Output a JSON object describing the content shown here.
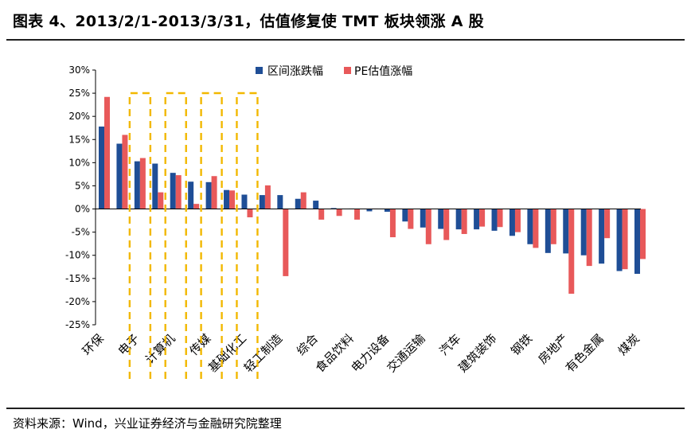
{
  "title": "图表 4、2013/2/1-2013/3/31，估值修复使 TMT 板块领涨 A 股",
  "source": "资料来源：Wind，兴业证券经济与金融研究院整理",
  "colors": {
    "series1": "#1f4e96",
    "series2": "#e8595a",
    "highlight": "#f2b800",
    "axis": "#000000"
  },
  "chart_data": {
    "type": "bar",
    "title": "",
    "xlabel": "",
    "ylabel": "",
    "ylim": [
      -25,
      30
    ],
    "yticks": [
      30,
      25,
      20,
      15,
      10,
      5,
      0,
      -5,
      -10,
      -15,
      -20,
      -25
    ],
    "ytick_labels": [
      "30%",
      "25%",
      "20%",
      "15%",
      "10%",
      "5%",
      "0%",
      "-5%",
      "-10%",
      "-15%",
      "-20%",
      "-25%"
    ],
    "legend_position": "top-center",
    "categories": [
      "环保",
      "电子",
      "计算机",
      "传媒",
      "基础化工",
      "轻工制造",
      "综合",
      "食品饮料",
      "电力设备",
      "交通运输",
      "汽车",
      "建筑装饰",
      "钢铁",
      "房地产",
      "有色金属",
      "煤炭"
    ],
    "bar_groups": [
      {
        "label": "环保",
        "v1": 17.8,
        "v2": 24.2
      },
      {
        "label": "",
        "v1": 14.1,
        "v2": 16.0
      },
      {
        "label": "电子",
        "v1": 10.3,
        "v2": 11.0
      },
      {
        "label": "",
        "v1": 9.8,
        "v2": 3.6
      },
      {
        "label": "计算机",
        "v1": 7.8,
        "v2": 7.3
      },
      {
        "label": "",
        "v1": 5.9,
        "v2": 1.1
      },
      {
        "label": "传媒",
        "v1": 5.8,
        "v2": 7.1
      },
      {
        "label": "",
        "v1": 4.1,
        "v2": 4.0
      },
      {
        "label": "基础化工",
        "v1": 3.1,
        "v2": -1.8
      },
      {
        "label": "",
        "v1": 3.0,
        "v2": 5.1
      },
      {
        "label": "轻工制造",
        "v1": 3.0,
        "v2": -14.5
      },
      {
        "label": "",
        "v1": 2.2,
        "v2": 3.6
      },
      {
        "label": "综合",
        "v1": 1.8,
        "v2": -2.3
      },
      {
        "label": "",
        "v1": 0.2,
        "v2": -1.5
      },
      {
        "label": "食品饮料",
        "v1": 0.1,
        "v2": -2.3
      },
      {
        "label": "",
        "v1": -0.5,
        "v2": 0.1
      },
      {
        "label": "电力设备",
        "v1": -0.6,
        "v2": -6.1
      },
      {
        "label": "",
        "v1": -2.7,
        "v2": -4.3
      },
      {
        "label": "交通运输",
        "v1": -4.0,
        "v2": -7.6
      },
      {
        "label": "",
        "v1": -4.3,
        "v2": -6.7
      },
      {
        "label": "汽车",
        "v1": -4.4,
        "v2": -5.4
      },
      {
        "label": "",
        "v1": -4.4,
        "v2": -3.8
      },
      {
        "label": "建筑装饰",
        "v1": -4.7,
        "v2": -3.9
      },
      {
        "label": "",
        "v1": -5.8,
        "v2": -5.0
      },
      {
        "label": "钢铁",
        "v1": -7.6,
        "v2": -8.4
      },
      {
        "label": "",
        "v1": -9.5,
        "v2": -7.6
      },
      {
        "label": "房地产",
        "v1": -9.6,
        "v2": -18.3
      },
      {
        "label": "",
        "v1": -10.0,
        "v2": -12.3
      },
      {
        "label": "有色金属",
        "v1": -11.8,
        "v2": -6.3
      },
      {
        "label": "",
        "v1": -13.4,
        "v2": -13.0
      },
      {
        "label": "煤炭",
        "v1": -14.0,
        "v2": -10.8
      }
    ],
    "series": [
      {
        "name": "区间涨跌幅",
        "color_key": "series1"
      },
      {
        "name": "PE估值涨幅",
        "color_key": "series2"
      }
    ],
    "highlighted_categories": [
      "电子",
      "计算机",
      "传媒",
      "基础化工"
    ]
  }
}
